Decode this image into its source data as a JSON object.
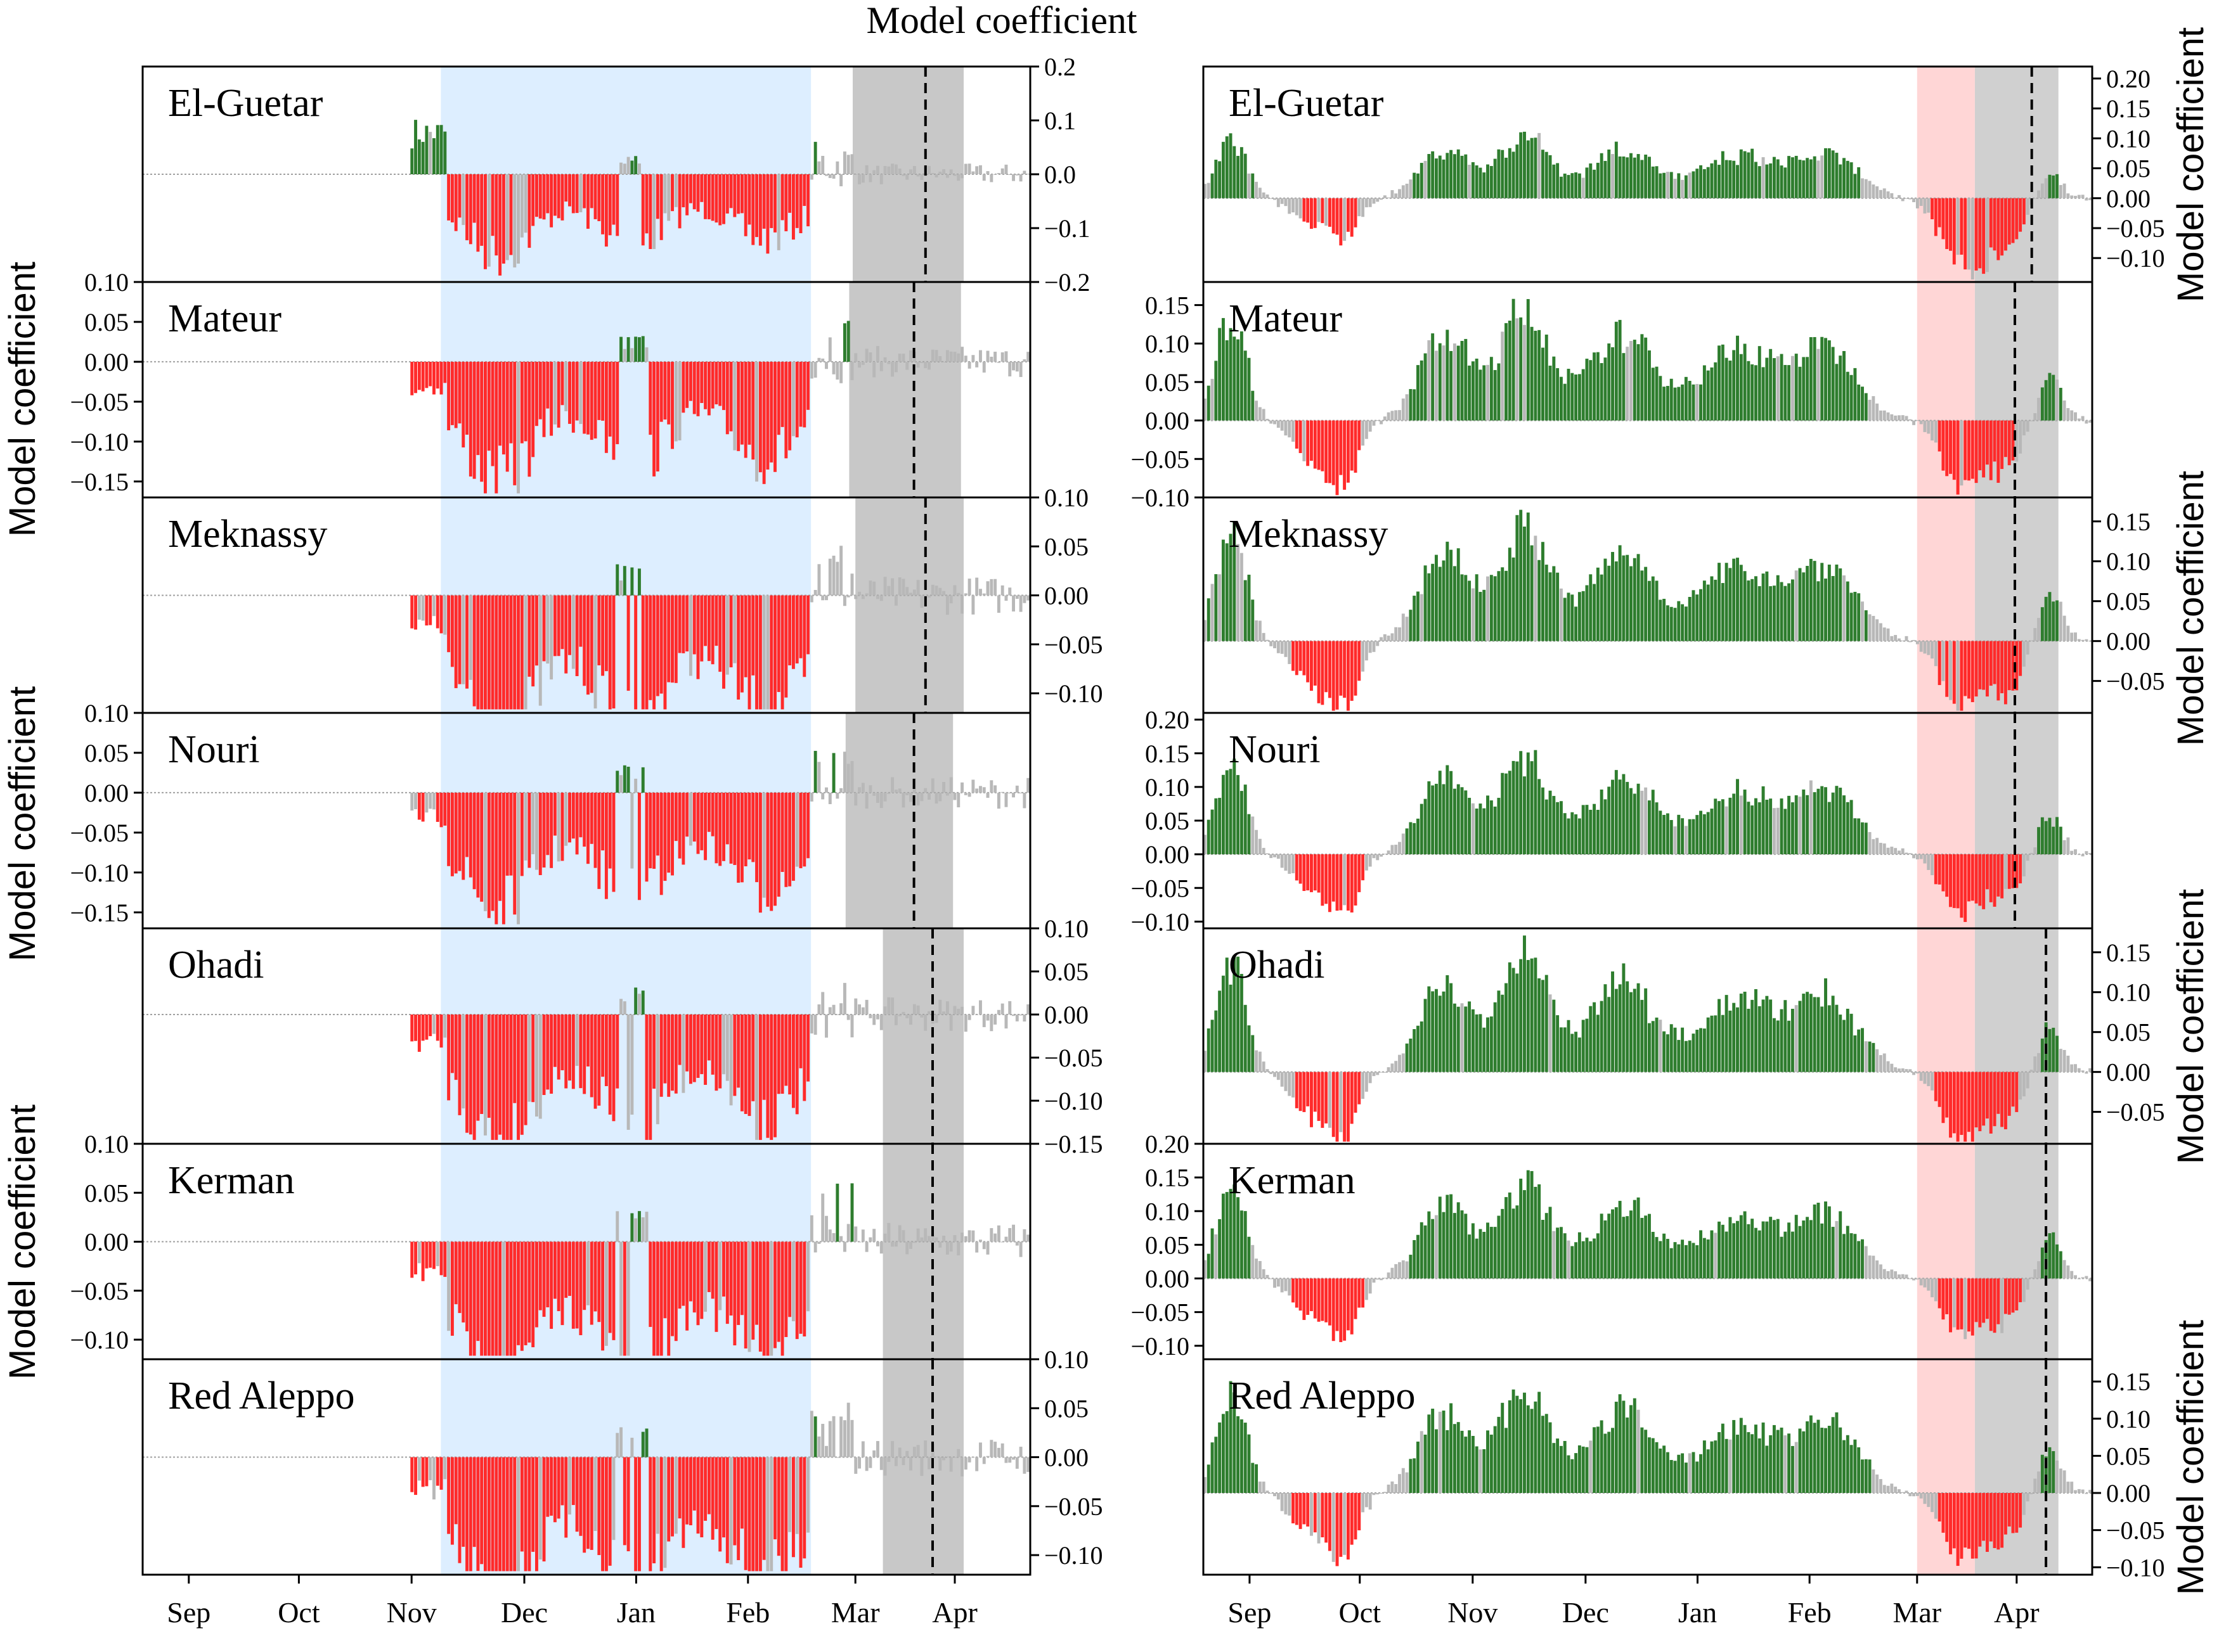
{
  "figure": {
    "title": "Model coefficient",
    "ylabel": "Model coefficient",
    "months": [
      "Sep",
      "Oct",
      "Nov",
      "Dec",
      "Jan",
      "Feb",
      "Mar",
      "Apr"
    ],
    "colors": {
      "positive_significant": "#2e7d2e",
      "negative_significant": "#ff2a2a",
      "not_significant": "#b8b8b8",
      "shade_left": "#ddeeff",
      "shade_right": "#ffd6d6",
      "shade_grey": "#c8c8c8",
      "zero_line": "#a0a0a0"
    },
    "legend": "none",
    "grid": false
  },
  "chart_data": [
    {
      "type": "bar",
      "panel": "left",
      "x_axis": "Sep – Apr (daily)",
      "cultivars": [
        {
          "name": "El-Guetar",
          "ylim": [
            -0.2,
            0.2
          ],
          "ticks": [
            0.2,
            0.1,
            0.0,
            -0.1,
            -0.2
          ],
          "tick_side": "right"
        },
        {
          "name": "Mateur",
          "ylim": [
            -0.17,
            0.1
          ],
          "ticks": [
            0.1,
            0.05,
            0.0,
            -0.05,
            -0.1,
            -0.15
          ],
          "tick_side": "left"
        },
        {
          "name": "Meknassy",
          "ylim": [
            -0.12,
            0.1
          ],
          "ticks": [
            0.1,
            0.05,
            0.0,
            -0.05,
            -0.1
          ],
          "tick_side": "right"
        },
        {
          "name": "Nouri",
          "ylim": [
            -0.17,
            0.1
          ],
          "ticks": [
            0.1,
            0.05,
            0.0,
            -0.05,
            -0.1,
            -0.15
          ],
          "tick_side": "left"
        },
        {
          "name": "Ohadi",
          "ylim": [
            -0.15,
            0.1
          ],
          "ticks": [
            0.1,
            0.05,
            0.0,
            -0.05,
            -0.1,
            -0.15
          ],
          "tick_side": "right"
        },
        {
          "name": "Kerman",
          "ylim": [
            -0.12,
            0.1
          ],
          "ticks": [
            0.1,
            0.05,
            0.0,
            -0.05,
            -0.1
          ],
          "tick_side": "left"
        },
        {
          "name": "Red Aleppo",
          "ylim": [
            -0.12,
            0.1
          ],
          "ticks": [
            0.1,
            0.05,
            0.0,
            -0.05,
            -0.1
          ],
          "tick_side": "right"
        }
      ]
    },
    {
      "type": "bar",
      "panel": "right",
      "x_axis": "Sep – Apr (daily)",
      "cultivars": [
        {
          "name": "El-Guetar",
          "ylim": [
            -0.14,
            0.22
          ],
          "ticks": [
            0.2,
            0.15,
            0.1,
            0.05,
            0.0,
            -0.05,
            -0.1
          ],
          "tick_side": "right"
        },
        {
          "name": "Mateur",
          "ylim": [
            -0.1,
            0.18
          ],
          "ticks": [
            0.15,
            0.1,
            0.05,
            0.0,
            -0.05,
            -0.1
          ],
          "tick_side": "left"
        },
        {
          "name": "Meknassy",
          "ylim": [
            -0.09,
            0.18
          ],
          "ticks": [
            0.15,
            0.1,
            0.05,
            0.0,
            -0.05
          ],
          "tick_side": "right"
        },
        {
          "name": "Nouri",
          "ylim": [
            -0.11,
            0.21
          ],
          "ticks": [
            0.2,
            0.15,
            0.1,
            0.05,
            0.0,
            -0.05,
            -0.1
          ],
          "tick_side": "left"
        },
        {
          "name": "Ohadi",
          "ylim": [
            -0.09,
            0.18
          ],
          "ticks": [
            0.15,
            0.1,
            0.05,
            0.0,
            -0.05
          ],
          "tick_side": "right"
        },
        {
          "name": "Kerman",
          "ylim": [
            -0.12,
            0.2
          ],
          "ticks": [
            0.2,
            0.15,
            0.1,
            0.05,
            0.0,
            -0.05,
            -0.1
          ],
          "tick_side": "left"
        },
        {
          "name": "Red Aleppo",
          "ylim": [
            -0.11,
            0.18
          ],
          "ticks": [
            0.15,
            0.1,
            0.05,
            0.0,
            -0.05,
            -0.1
          ],
          "tick_side": "right"
        }
      ]
    }
  ]
}
